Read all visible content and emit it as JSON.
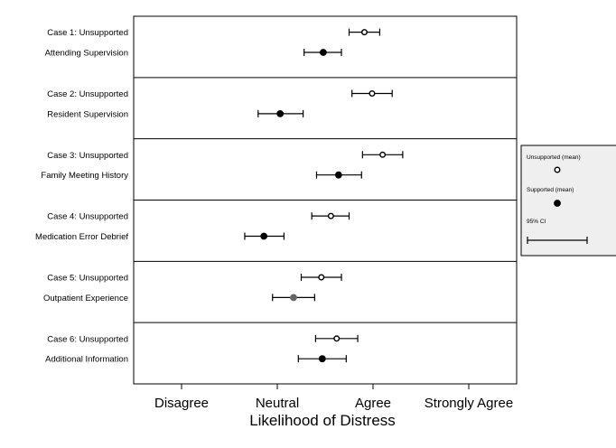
{
  "chart_data": {
    "type": "scatter",
    "xlabel": "Likelihood of Distress",
    "x_ticks": [
      {
        "value": 1,
        "label": "Disagree"
      },
      {
        "value": 2,
        "label": "Neutral"
      },
      {
        "value": 3,
        "label": "Agree"
      },
      {
        "value": 4,
        "label": "Strongly Agree"
      }
    ],
    "xlim": [
      0.5,
      4.5
    ],
    "grid": false,
    "legend": {
      "position": "right",
      "entries": [
        {
          "label": "Unsupported (mean)",
          "marker": "open-circle"
        },
        {
          "label": "Supported (mean)",
          "marker": "filled-circle"
        },
        {
          "label": "95% CI",
          "marker": "errorbar"
        }
      ]
    },
    "cases": [
      {
        "rows": [
          {
            "label": "Case 1: Unsupported",
            "mean": 2.91,
            "lo": 2.75,
            "hi": 3.07,
            "type": "unsupported",
            "color": "#000000"
          },
          {
            "label": "Attending Supervision",
            "mean": 2.48,
            "lo": 2.28,
            "hi": 2.67,
            "type": "supported",
            "color": "#000000"
          }
        ]
      },
      {
        "rows": [
          {
            "label": "Case 2: Unsupported",
            "mean": 2.99,
            "lo": 2.78,
            "hi": 3.2,
            "type": "unsupported",
            "color": "#000000"
          },
          {
            "label": "Resident Supervision",
            "mean": 2.03,
            "lo": 1.8,
            "hi": 2.27,
            "type": "supported",
            "color": "#000000"
          }
        ]
      },
      {
        "rows": [
          {
            "label": "Case 3: Unsupported",
            "mean": 3.1,
            "lo": 2.89,
            "hi": 3.31,
            "type": "unsupported",
            "color": "#000000"
          },
          {
            "label": "Family Meeting History",
            "mean": 2.64,
            "lo": 2.41,
            "hi": 2.88,
            "type": "supported",
            "color": "#000000"
          }
        ]
      },
      {
        "rows": [
          {
            "label": "Case 4: Unsupported",
            "mean": 2.56,
            "lo": 2.36,
            "hi": 2.75,
            "type": "unsupported",
            "color": "#000000"
          },
          {
            "label": "Medication Error Debrief",
            "mean": 1.86,
            "lo": 1.66,
            "hi": 2.07,
            "type": "supported",
            "color": "#000000"
          }
        ]
      },
      {
        "rows": [
          {
            "label": "Case 5: Unsupported",
            "mean": 2.46,
            "lo": 2.25,
            "hi": 2.67,
            "type": "unsupported",
            "color": "#000000"
          },
          {
            "label": "Outpatient Experience",
            "mean": 2.17,
            "lo": 1.95,
            "hi": 2.39,
            "type": "supported",
            "color": "#666666"
          }
        ]
      },
      {
        "rows": [
          {
            "label": "Case 6: Unsupported",
            "mean": 2.62,
            "lo": 2.4,
            "hi": 2.84,
            "type": "unsupported",
            "color": "#000000"
          },
          {
            "label": "Additional Information",
            "mean": 2.47,
            "lo": 2.22,
            "hi": 2.72,
            "type": "supported",
            "color": "#000000"
          }
        ]
      }
    ]
  }
}
